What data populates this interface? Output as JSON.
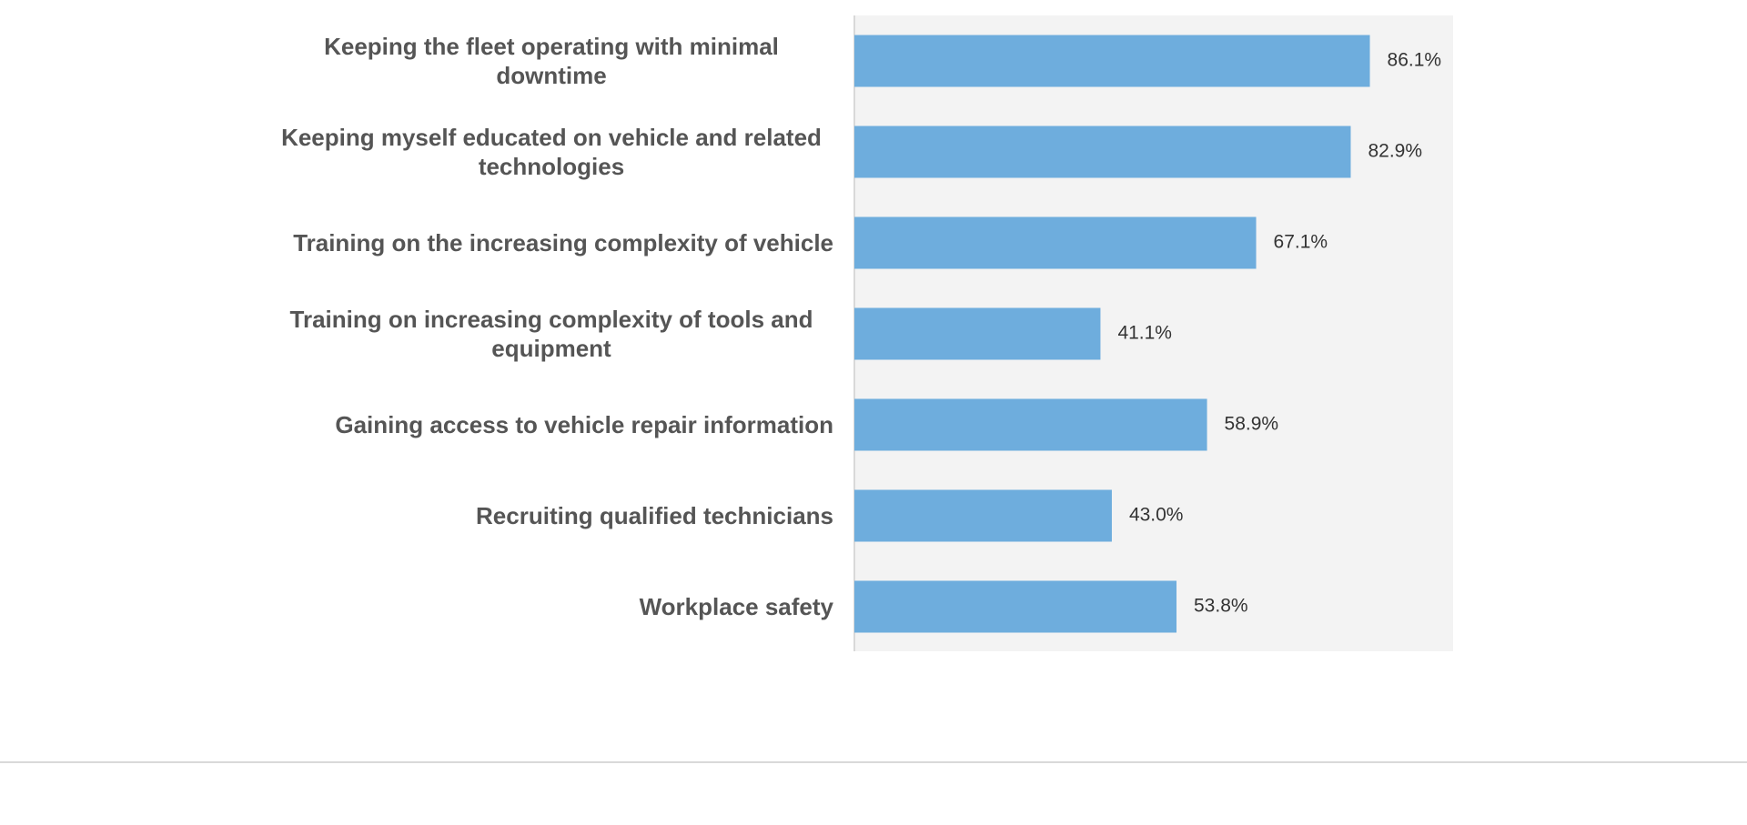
{
  "chart_data": {
    "type": "bar",
    "orientation": "horizontal",
    "categories": [
      "Keeping the fleet operating with minimal downtime",
      "Keeping myself educated on vehicle and related technologies",
      "Training on the increasing complexity of vehicle",
      "Training on increasing complexity of tools and equipment",
      "Gaining access to vehicle repair information",
      "Recruiting qualified technicians",
      "Workplace safety"
    ],
    "values": [
      86.1,
      82.9,
      67.1,
      41.1,
      58.9,
      43.0,
      53.8
    ],
    "value_labels": [
      "86.1%",
      "82.9%",
      "67.1%",
      "41.1%",
      "58.9%",
      "43.0%",
      "53.8%"
    ],
    "color": "#6eaddd",
    "xlim": [
      0,
      100
    ]
  }
}
